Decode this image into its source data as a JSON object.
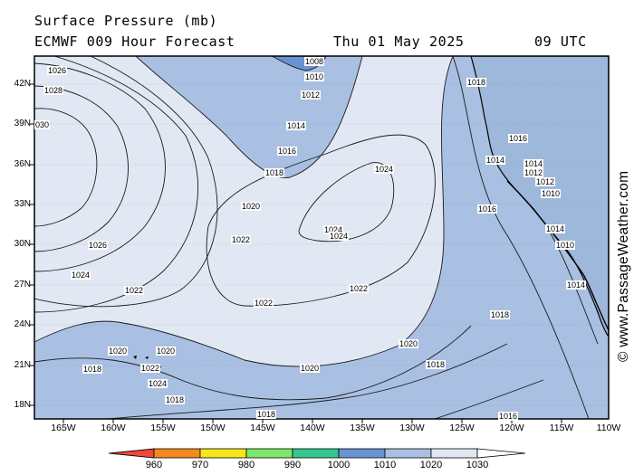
{
  "header": {
    "title": "Surface Pressure (mb)",
    "model": "ECMWF 009 Hour Forecast",
    "date": "Thu 01 May 2025",
    "time": "09 UTC"
  },
  "lat_labels": [
    "42N",
    "39N",
    "36N",
    "33N",
    "30N",
    "27N",
    "24N",
    "21N",
    "18N"
  ],
  "lon_labels": [
    "165W",
    "160W",
    "155W",
    "150W",
    "145W",
    "140W",
    "135W",
    "130W",
    "125W",
    "120W",
    "115W",
    "110W"
  ],
  "isobar_labels": [
    "1026",
    "1028",
    "030",
    "1026",
    "1024",
    "1022",
    "1022",
    "1022",
    "1020",
    "1020",
    "1018",
    "1022",
    "1024",
    "1018",
    "1008",
    "1010",
    "1012",
    "1014",
    "1016",
    "1018",
    "1020",
    "1024",
    "1024",
    "1024",
    "1022",
    "1020",
    "1020",
    "1018",
    "1018",
    "1016",
    "1018",
    "1014",
    "1016",
    "1014",
    "1012",
    "1012",
    "1010",
    "1014",
    "1010",
    "1014",
    "1016",
    "1018"
  ],
  "colorbar": {
    "ticks": [
      "960",
      "970",
      "980",
      "990",
      "1000",
      "1010",
      "1020",
      "1030"
    ],
    "colors": [
      "#f2453b",
      "#f28a1e",
      "#f6e61c",
      "#7de86a",
      "#35c690",
      "#6b93d1",
      "#a9c0e3",
      "#e1e8f4"
    ]
  },
  "watermark": "© www.PassageWeather.com"
}
